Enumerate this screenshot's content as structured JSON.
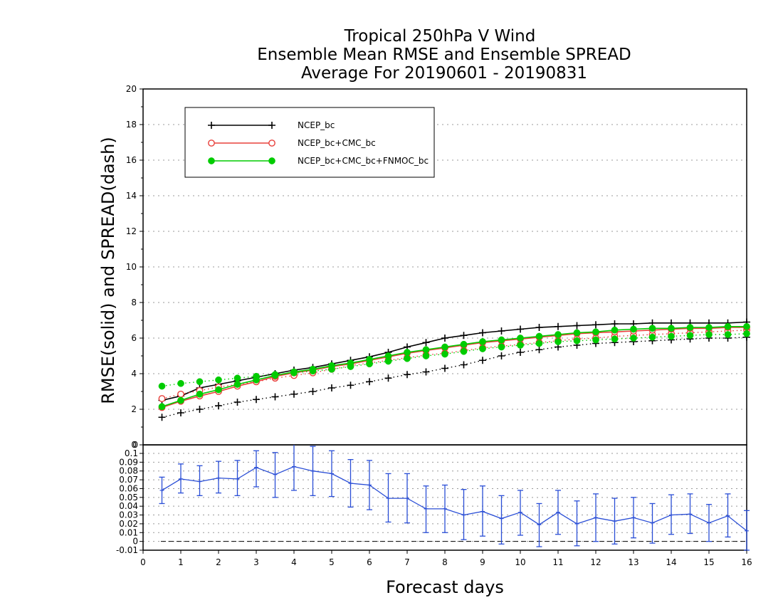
{
  "chart_data": [
    {
      "type": "line",
      "title": [
        "Tropical 250hPa V Wind",
        "Ensemble Mean RMSE and Ensemble SPREAD",
        "Average For 20190601 - 20190831"
      ],
      "xlabel": "Forecast days",
      "ylabel": "RMSE(solid) and SPREAD(dash)",
      "xlim": [
        0,
        16
      ],
      "ylim": [
        0,
        20
      ],
      "xticks": [
        0,
        1,
        2,
        3,
        4,
        5,
        6,
        7,
        8,
        9,
        10,
        11,
        12,
        13,
        14,
        15,
        16
      ],
      "yticks": [
        0,
        2,
        4,
        6,
        8,
        10,
        12,
        14,
        16,
        18,
        20
      ],
      "grid": true,
      "legend_position": "top-left",
      "x": [
        0.5,
        1,
        1.5,
        2,
        2.5,
        3,
        3.5,
        4,
        4.5,
        5,
        5.5,
        6,
        6.5,
        7,
        7.5,
        8,
        8.5,
        9,
        9.5,
        10,
        10.5,
        11,
        11.5,
        12,
        12.5,
        13,
        13.5,
        14,
        14.5,
        15,
        15.5,
        16
      ],
      "series": [
        {
          "name": "NCEP_bc",
          "color": "#000000",
          "marker": "plus",
          "rmse": [
            2.5,
            2.75,
            3.2,
            3.4,
            3.6,
            3.8,
            4.0,
            4.2,
            4.35,
            4.55,
            4.75,
            4.95,
            5.2,
            5.5,
            5.75,
            6.0,
            6.15,
            6.3,
            6.4,
            6.5,
            6.6,
            6.65,
            6.7,
            6.75,
            6.8,
            6.8,
            6.85,
            6.85,
            6.85,
            6.85,
            6.85,
            6.9
          ],
          "spread": [
            1.55,
            1.8,
            2.0,
            2.2,
            2.4,
            2.55,
            2.7,
            2.85,
            3.0,
            3.2,
            3.35,
            3.55,
            3.75,
            3.95,
            4.1,
            4.3,
            4.5,
            4.75,
            5.0,
            5.2,
            5.35,
            5.5,
            5.6,
            5.7,
            5.75,
            5.8,
            5.85,
            5.9,
            5.95,
            6.0,
            6.0,
            6.05
          ]
        },
        {
          "name": "NCEP_bc+CMC_bc",
          "color": "#e8403b",
          "marker": "open-circle",
          "rmse": [
            2.1,
            2.45,
            2.75,
            3.0,
            3.3,
            3.55,
            3.85,
            4.05,
            4.2,
            4.4,
            4.55,
            4.75,
            4.95,
            5.15,
            5.3,
            5.45,
            5.6,
            5.75,
            5.85,
            5.95,
            6.05,
            6.15,
            6.25,
            6.3,
            6.35,
            6.4,
            6.45,
            6.5,
            6.55,
            6.55,
            6.6,
            6.6
          ],
          "spread": [
            2.6,
            2.85,
            3.05,
            3.25,
            3.4,
            3.55,
            3.75,
            3.9,
            4.05,
            4.25,
            4.45,
            4.6,
            4.75,
            4.9,
            5.05,
            5.15,
            5.3,
            5.45,
            5.55,
            5.65,
            5.75,
            5.85,
            5.95,
            6.0,
            6.1,
            6.15,
            6.2,
            6.25,
            6.3,
            6.35,
            6.4,
            6.45
          ]
        },
        {
          "name": "NCEP_bc+CMC_bc+FNMOC_bc",
          "color": "#00cc00",
          "marker": "filled-circle",
          "rmse": [
            2.15,
            2.5,
            2.85,
            3.1,
            3.4,
            3.65,
            3.9,
            4.1,
            4.25,
            4.45,
            4.6,
            4.8,
            5.0,
            5.2,
            5.35,
            5.5,
            5.65,
            5.8,
            5.9,
            6.0,
            6.1,
            6.2,
            6.3,
            6.35,
            6.45,
            6.5,
            6.55,
            6.55,
            6.6,
            6.6,
            6.65,
            6.65
          ],
          "spread": [
            3.3,
            3.45,
            3.55,
            3.65,
            3.75,
            3.85,
            3.95,
            4.05,
            4.15,
            4.25,
            4.4,
            4.55,
            4.7,
            4.85,
            5.0,
            5.1,
            5.25,
            5.4,
            5.5,
            5.6,
            5.7,
            5.8,
            5.85,
            5.9,
            5.95,
            6.0,
            6.05,
            6.1,
            6.15,
            6.2,
            6.2,
            6.25
          ]
        }
      ]
    },
    {
      "type": "line",
      "title": "",
      "xlabel": "Forecast days",
      "xlim": [
        0,
        16
      ],
      "ylim": [
        -0.01,
        0.1
      ],
      "yticks": [
        -0.01,
        0,
        0.01,
        0.02,
        0.03,
        0.04,
        0.05,
        0.06,
        0.07,
        0.08,
        0.09,
        0.1
      ],
      "ytick_labels": [
        "-0.01",
        "0",
        "0.01",
        "0.02",
        "0.03",
        "0.04",
        "0.05",
        "0.06",
        "0.07",
        "0.08",
        "0.09",
        "0.1"
      ],
      "top_label": "0",
      "grid": true,
      "reference_line": 0,
      "color": "#2a4ed6",
      "x": [
        0.5,
        1,
        1.5,
        2,
        2.5,
        3,
        3.5,
        4,
        4.5,
        5,
        5.5,
        6,
        6.5,
        7,
        7.5,
        8,
        8.5,
        9,
        9.5,
        10,
        10.5,
        11,
        11.5,
        12,
        12.5,
        13,
        13.5,
        14,
        14.5,
        15,
        15.5,
        16
      ],
      "values": [
        0.058,
        0.071,
        0.068,
        0.072,
        0.071,
        0.084,
        0.076,
        0.085,
        0.08,
        0.077,
        0.066,
        0.064,
        0.049,
        0.049,
        0.037,
        0.037,
        0.03,
        0.034,
        0.026,
        0.033,
        0.019,
        0.033,
        0.02,
        0.027,
        0.023,
        0.027,
        0.021,
        0.03,
        0.031,
        0.021,
        0.029,
        0.012
      ],
      "err_low": [
        0.043,
        0.055,
        0.052,
        0.055,
        0.052,
        0.062,
        0.05,
        0.058,
        0.052,
        0.051,
        0.039,
        0.036,
        0.022,
        0.021,
        0.01,
        0.01,
        0.002,
        0.006,
        -0.003,
        0.007,
        -0.006,
        0.008,
        -0.005,
        0.0,
        -0.003,
        0.004,
        -0.002,
        0.008,
        0.009,
        0.0,
        0.005,
        -0.01
      ],
      "err_high": [
        0.073,
        0.088,
        0.086,
        0.091,
        0.092,
        0.103,
        0.101,
        0.111,
        0.108,
        0.103,
        0.093,
        0.092,
        0.077,
        0.077,
        0.063,
        0.064,
        0.059,
        0.063,
        0.052,
        0.058,
        0.043,
        0.058,
        0.046,
        0.054,
        0.049,
        0.05,
        0.043,
        0.053,
        0.054,
        0.042,
        0.054,
        0.035
      ]
    }
  ]
}
